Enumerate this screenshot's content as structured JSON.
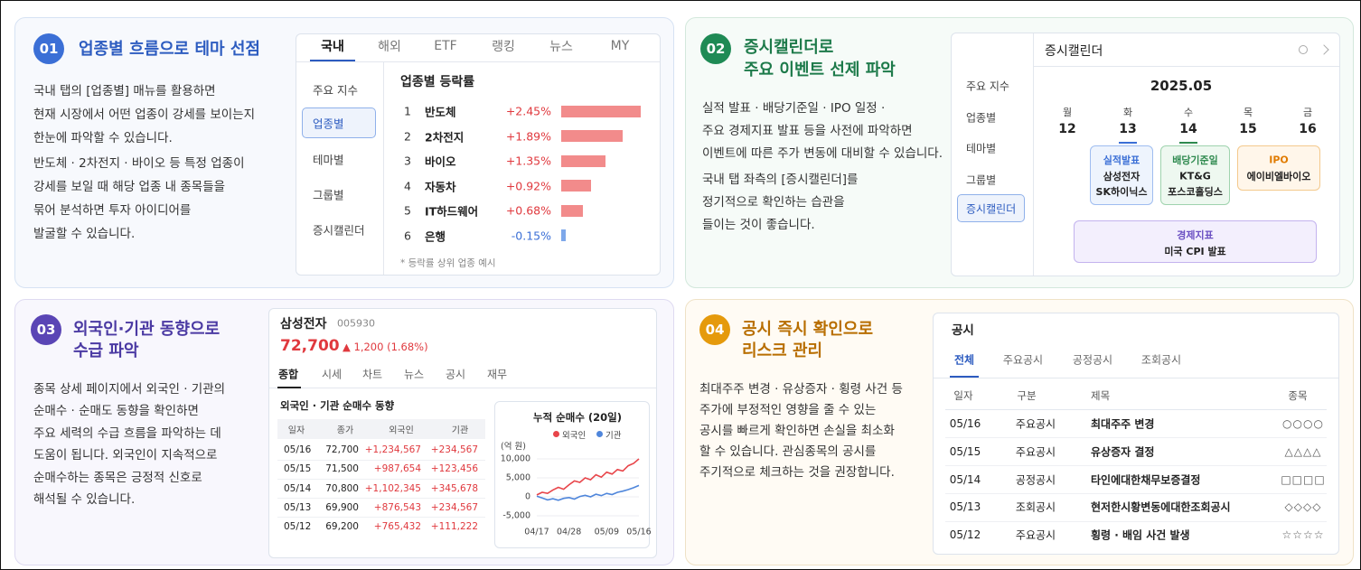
{
  "cards": [
    {
      "number": "01",
      "title": [
        "업종별 흐름으로 테마 선점"
      ],
      "paragraphs": [
        [
          "국내 탭의 [업종별] 매뉴를 활용하면",
          "현재 시장에서 어떤 업종이 강세를 보이는지",
          "한눈에 파악할 수 있습니다."
        ],
        [
          "반도체 · 2차전지 · 바이오 등 특정 업종이",
          "강세를 보일 때 해당 업종 내 종목들을",
          "묶어 분석하면 투자 아이디어를",
          "발굴할 수 있습니다."
        ]
      ]
    },
    {
      "number": "02",
      "title": [
        "증시캘린더로",
        "주요 이벤트 선제 파악"
      ],
      "paragraphs": [
        [
          "실적 발표 · 배당기준일 · IPO 일정 ·",
          "주요 경제지표 발표 등을 사전에 파악하면",
          "이벤트에 따른 주가 변동에 대비할 수 있습니다."
        ],
        [
          "국내 탭 좌측의 [증시캘린더]를",
          "정기적으로 확인하는 습관을",
          "들이는 것이 좋습니다."
        ]
      ]
    },
    {
      "number": "03",
      "title": [
        "외국인·기관 동향으로",
        "수급 파악"
      ],
      "paragraphs": [
        [
          "종목 상세 페이지에서 외국인 · 기관의",
          "순매수 · 순매도 동향을 확인하면",
          "주요 세력의 수급 흐름을 파악하는 데",
          "도움이 됩니다. 외국인이 지속적으로",
          "순매수하는 종목은 긍정적 신호로",
          "해석될 수 있습니다."
        ]
      ]
    },
    {
      "number": "04",
      "title": [
        "공시 즉시 확인으로",
        "리스크 관리"
      ],
      "paragraphs": [
        [
          "최대주주 변경 · 유상증자 · 횡령 사건 등",
          "주가에 부정적인 영향을 줄 수 있는",
          "공시를 빠르게 확인하면 손실을 최소화",
          "할 수 있습니다. 관심종목의 공시를",
          "주기적으로 체크하는 것을 권장합니다."
        ]
      ]
    }
  ],
  "market_panel": {
    "tabs": [
      "국내",
      "해외",
      "ETF",
      "랭킹",
      "뉴스",
      "MY"
    ],
    "menu": [
      "주요 지수",
      "업종별",
      "테마별",
      "그룹별",
      "증시캘린더"
    ]
  },
  "calendar_panel": {
    "menu": [
      "주요 지수",
      "업종별",
      "테마별",
      "그룹별",
      "증시캘린더"
    ],
    "title": "증시캘린더",
    "month": "2025.05",
    "weekdays": [
      "월",
      "화",
      "수",
      "목",
      "금"
    ],
    "dates": [
      "12",
      "13",
      "14",
      "15",
      "16"
    ],
    "events": [
      {
        "title": "실적발표",
        "items": [
          "삼성전자",
          "SK하이닉스"
        ]
      },
      {
        "title": "배당기준일",
        "items": [
          "KT&G",
          "포스코홀딩스"
        ]
      },
      {
        "title": "IPO",
        "items": [
          "에이비엘바이오"
        ]
      },
      {
        "title": "경제지표",
        "items": [
          "미국 CPI 발표"
        ]
      }
    ]
  },
  "stock_panel": {
    "name": "삼성전자",
    "code": "005930",
    "price": "72,700",
    "change": "▲ 1,200 (1.68%)",
    "tabs": [
      "종합",
      "시세",
      "차트",
      "뉴스",
      "공시",
      "재무"
    ],
    "table_title": "외국인 · 기관 순매수 동향",
    "columns": [
      "일자",
      "종가",
      "외국인",
      "기관"
    ],
    "rows": [
      [
        "05/16",
        "72,700",
        "+1,234,567",
        "+234,567"
      ],
      [
        "05/15",
        "71,500",
        "+987,654",
        "+123,456"
      ],
      [
        "05/14",
        "70,800",
        "+1,102,345",
        "+345,678"
      ],
      [
        "05/13",
        "69,900",
        "+876,543",
        "+234,567"
      ],
      [
        "05/12",
        "69,200",
        "+765,432",
        "+111,222"
      ]
    ]
  },
  "disclosure_panel": {
    "title": "공시",
    "tabs": [
      "전체",
      "주요공시",
      "공정공시",
      "조회공시"
    ],
    "columns": [
      "일자",
      "구분",
      "제목",
      "종목"
    ],
    "rows": [
      [
        "05/16",
        "주요공시",
        "최대주주 변경",
        "○○○○"
      ],
      [
        "05/15",
        "주요공시",
        "유상증자 결정",
        "△△△△"
      ],
      [
        "05/14",
        "공정공시",
        "타인에대한채무보증결정",
        "□□□□"
      ],
      [
        "05/13",
        "조회공시",
        "현저한시황변동에대한조회공시",
        "◇◇◇◇"
      ],
      [
        "05/12",
        "주요공시",
        "횡령 · 배임 사건 발생",
        "☆☆☆☆"
      ]
    ]
  },
  "chart_data": [
    {
      "type": "bar",
      "title": "업종별 등락률",
      "ranks": [
        "1",
        "2",
        "3",
        "4",
        "5",
        "6"
      ],
      "categories": [
        "반도체",
        "2차전지",
        "바이오",
        "자동차",
        "IT하드웨어",
        "은행"
      ],
      "values": [
        2.45,
        1.89,
        1.35,
        0.92,
        0.68,
        -0.15
      ],
      "value_labels": [
        "+2.45%",
        "+1.89%",
        "+1.35%",
        "+0.92%",
        "+0.68%",
        "-0.15%"
      ],
      "colors": {
        "positive": "#f28b8b",
        "negative": "#7ea8ea"
      },
      "note": "* 등락률 상위 업종 예시"
    },
    {
      "type": "line",
      "title": "누적 순매수 (20일)",
      "y_label": "(억 원)",
      "categories": [
        "04/17",
        null,
        null,
        null,
        null,
        null,
        "04/28",
        null,
        null,
        null,
        null,
        null,
        null,
        "05/09",
        null,
        null,
        null,
        null,
        null,
        "05/16"
      ],
      "series": [
        {
          "name": "외국인",
          "color": "#e8454a",
          "values": [
            500,
            1200,
            900,
            1800,
            2500,
            2000,
            3200,
            4200,
            3800,
            5000,
            4500,
            5800,
            5200,
            6500,
            6000,
            7200,
            6800,
            8200,
            8800,
            10000
          ]
        },
        {
          "name": "기관",
          "color": "#4f86db",
          "values": [
            200,
            -300,
            -800,
            -500,
            -900,
            -400,
            -200,
            -600,
            100,
            400,
            0,
            700,
            300,
            900,
            600,
            1200,
            1500,
            1900,
            2400,
            3000
          ]
        }
      ],
      "ylim": [
        -5000,
        10000
      ],
      "yticks": [
        {
          "value": -5000,
          "label": "-5,000"
        },
        0,
        {
          "value": 5000,
          "label": "5,000"
        },
        {
          "value": 10000,
          "label": "10,000"
        }
      ]
    }
  ]
}
